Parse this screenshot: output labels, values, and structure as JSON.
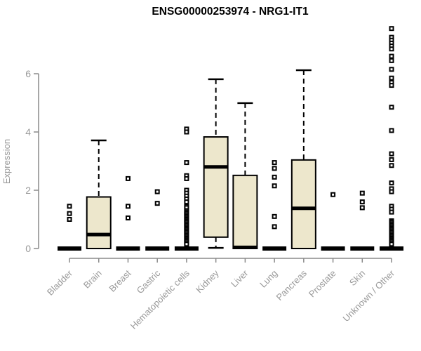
{
  "title": "ENSG00000253974 - NRG1-IT1",
  "chart_data": {
    "type": "boxplot",
    "title": "ENSG00000253974 - NRG1-IT1",
    "ylabel": "Expression",
    "xlabel": "",
    "yticks": [
      0,
      2,
      4,
      6
    ],
    "ylim": [
      0,
      7.6
    ],
    "grid": false,
    "legend": "none",
    "categories": [
      "Bladder",
      "Brain",
      "Breast",
      "Gastric",
      "Hematopoietic cells",
      "Kidney",
      "Liver",
      "Lung",
      "Pancreas",
      "Prostate",
      "Skin",
      "Unknown / Other"
    ],
    "boxes": [
      {
        "category": "Bladder",
        "q1": 0,
        "median": 0,
        "q3": 0,
        "whisker_low": 0,
        "whisker_high": 0,
        "collapsed": true,
        "outliers": [
          1.0,
          1.2,
          1.45
        ]
      },
      {
        "category": "Brain",
        "q1": 0,
        "median": 0.48,
        "q3": 1.77,
        "whisker_low": 0,
        "whisker_high": 3.71,
        "collapsed": false,
        "outliers": []
      },
      {
        "category": "Breast",
        "q1": 0,
        "median": 0,
        "q3": 0,
        "whisker_low": 0,
        "whisker_high": 0,
        "collapsed": true,
        "outliers": [
          1.05,
          1.45,
          2.4
        ]
      },
      {
        "category": "Gastric",
        "q1": 0,
        "median": 0,
        "q3": 0,
        "whisker_low": 0,
        "whisker_high": 0,
        "collapsed": true,
        "outliers": [
          1.55,
          1.95
        ]
      },
      {
        "category": "Hematopoietic cells",
        "q1": 0,
        "median": 0,
        "q3": 0,
        "whisker_low": 0,
        "whisker_high": 0,
        "collapsed": true,
        "outliers": [
          4.1,
          4.0,
          2.95,
          2.5,
          2.4,
          2.0,
          1.9,
          1.8,
          1.7,
          1.6,
          1.45,
          1.4,
          1.3,
          1.25,
          1.2,
          1.15,
          1.1,
          1.05,
          1.0,
          0.95,
          0.9,
          0.85,
          0.8,
          0.75,
          0.7,
          0.65,
          0.6,
          0.55,
          0.5,
          0.45,
          0.4,
          0.35,
          0.3,
          0.25,
          0.2,
          0.15
        ]
      },
      {
        "category": "Kidney",
        "q1": 0.39,
        "median": 2.8,
        "q3": 3.83,
        "whisker_low": 0.02,
        "whisker_high": 5.81,
        "collapsed": false,
        "outliers": []
      },
      {
        "category": "Liver",
        "q1": 0,
        "median": 0.04,
        "q3": 2.51,
        "whisker_low": 0,
        "whisker_high": 4.99,
        "collapsed": false,
        "outliers": []
      },
      {
        "category": "Lung",
        "q1": 0,
        "median": 0,
        "q3": 0,
        "whisker_low": 0,
        "whisker_high": 0,
        "collapsed": true,
        "outliers": [
          2.95,
          2.75,
          2.45,
          2.15,
          1.1,
          0.75
        ]
      },
      {
        "category": "Pancreas",
        "q1": 0,
        "median": 1.38,
        "q3": 3.04,
        "whisker_low": 0,
        "whisker_high": 6.12,
        "collapsed": false,
        "outliers": []
      },
      {
        "category": "Prostate",
        "q1": 0,
        "median": 0,
        "q3": 0,
        "whisker_low": 0,
        "whisker_high": 0,
        "collapsed": true,
        "outliers": [
          1.85
        ]
      },
      {
        "category": "Skin",
        "q1": 0,
        "median": 0,
        "q3": 0,
        "whisker_low": 0,
        "whisker_high": 0,
        "collapsed": true,
        "outliers": [
          1.9,
          1.6,
          1.4
        ]
      },
      {
        "category": "Unknown / Other",
        "q1": 0,
        "median": 0,
        "q3": 0,
        "whisker_low": 0,
        "whisker_high": 0,
        "collapsed": true,
        "outliers": [
          7.55,
          7.25,
          7.15,
          7.05,
          6.95,
          6.85,
          6.6,
          6.45,
          6.15,
          5.85,
          5.7,
          5.6,
          4.85,
          4.05,
          3.25,
          3.05,
          2.85,
          2.25,
          2.05,
          1.95,
          1.45,
          1.35,
          1.25,
          0.95,
          0.9,
          0.85,
          0.8,
          0.75,
          0.7,
          0.65,
          0.6,
          0.55,
          0.5,
          0.45,
          0.4,
          0.35,
          0.3,
          0.25,
          0.2,
          0.15
        ]
      }
    ],
    "colors": {
      "box_fill": "#EDE7CC",
      "box_stroke": "#000000",
      "median": "#000000",
      "whisker": "#000000",
      "outlier_stroke": "#000000",
      "outlier_fill": "#ffffff",
      "axis": "#8a8a8a",
      "tick_label": "#999999",
      "title": "#000000"
    }
  }
}
